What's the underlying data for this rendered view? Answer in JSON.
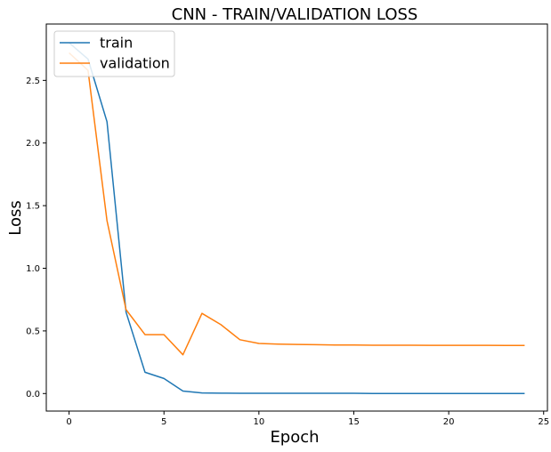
{
  "chart_data": {
    "type": "line",
    "title": "CNN - TRAIN/VALIDATION LOSS",
    "xlabel": "Epoch",
    "ylabel": "Loss",
    "xlim": [
      -1.2,
      25.2
    ],
    "ylim": [
      -0.14,
      2.95
    ],
    "xticks": [
      0,
      5,
      10,
      15,
      20,
      25
    ],
    "yticks": [
      0.0,
      0.5,
      1.0,
      1.5,
      2.0,
      2.5
    ],
    "x": [
      0,
      1,
      2,
      3,
      4,
      5,
      6,
      7,
      8,
      9,
      10,
      11,
      12,
      13,
      14,
      15,
      16,
      17,
      18,
      19,
      20,
      21,
      22,
      23,
      24
    ],
    "series": [
      {
        "name": "train",
        "color": "#1f77b4",
        "values": [
          2.8,
          2.67,
          2.17,
          0.65,
          0.17,
          0.12,
          0.02,
          0.005,
          0.003,
          0.002,
          0.002,
          0.002,
          0.002,
          0.002,
          0.002,
          0.002,
          0.001,
          0.001,
          0.001,
          0.001,
          0.001,
          0.001,
          0.001,
          0.001,
          0.001
        ]
      },
      {
        "name": "validation",
        "color": "#ff7f0e",
        "values": [
          2.72,
          2.58,
          1.38,
          0.67,
          0.47,
          0.47,
          0.31,
          0.64,
          0.55,
          0.43,
          0.4,
          0.395,
          0.392,
          0.39,
          0.388,
          0.387,
          0.386,
          0.386,
          0.386,
          0.385,
          0.385,
          0.385,
          0.385,
          0.384,
          0.384
        ]
      }
    ],
    "grid": false,
    "legend_position": "top-left"
  }
}
